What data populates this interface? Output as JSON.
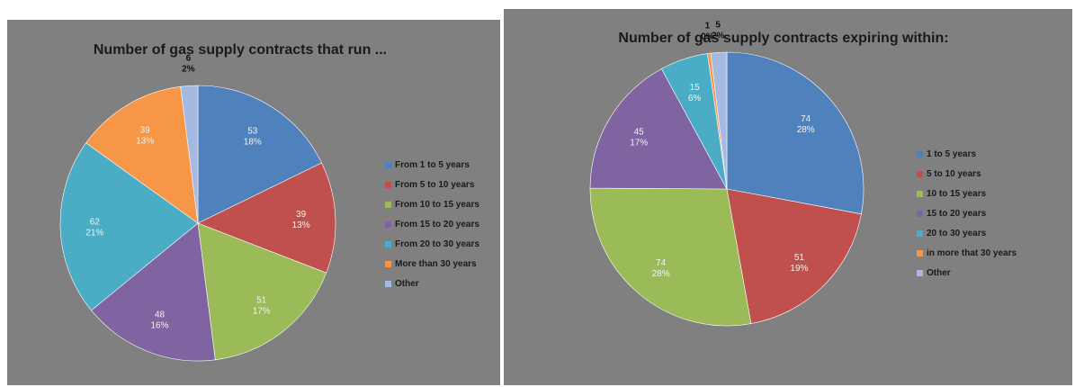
{
  "chart_data": [
    {
      "type": "pie",
      "title": "Number of gas supply contracts that run ...",
      "categories": [
        "From 1 to 5 years",
        "From 5 to 10 years",
        "From 10 to 15 years",
        "From 15 to 20 years",
        "From 20 to 30 years",
        "More than 30 years",
        "Other"
      ],
      "values": [
        53,
        39,
        51,
        48,
        62,
        39,
        6
      ],
      "percent_labels": [
        "18%",
        "13%",
        "17%",
        "16%",
        "21%",
        "13%",
        "2%"
      ],
      "colors": [
        "#4f81bd",
        "#c0504d",
        "#9bbb59",
        "#8064a2",
        "#4bacc6",
        "#f79646",
        "#a6b9e0"
      ],
      "legend_position": "right"
    },
    {
      "type": "pie",
      "title": "Number of gas supply contracts expiring within:",
      "categories": [
        "1 to 5 years",
        "5 to 10 years",
        "10 to 15 years",
        "15 to 20 years",
        "20 to 30 years",
        "in more that 30 years",
        "Other"
      ],
      "values": [
        74,
        51,
        74,
        45,
        15,
        1,
        5
      ],
      "percent_labels": [
        "28%",
        "19%",
        "28%",
        "17%",
        "6%",
        "0%",
        "2%"
      ],
      "colors": [
        "#4f81bd",
        "#c0504d",
        "#9bbb59",
        "#8064a2",
        "#4bacc6",
        "#f79646",
        "#a6b9e0"
      ],
      "legend_position": "right"
    }
  ]
}
